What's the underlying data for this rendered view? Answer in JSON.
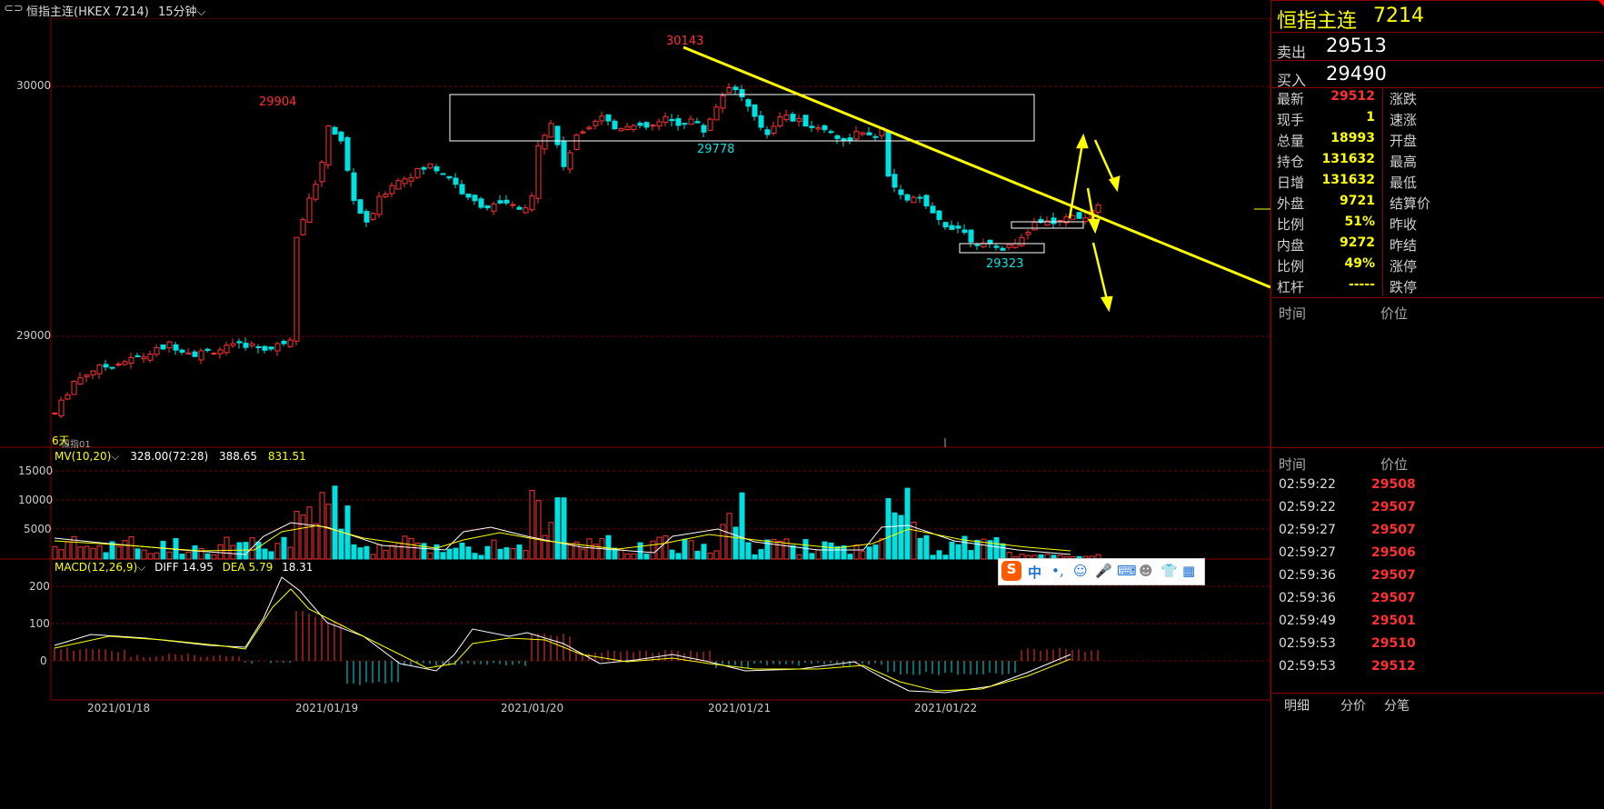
{
  "header": {
    "link_icon": "link-icon",
    "symbol": "恒指主连(HKEX 7214)",
    "period": "15分钟"
  },
  "chart_panel": {
    "price_labels": [
      "30000",
      "29000"
    ],
    "annotations": {
      "high_label": "30143",
      "peak_label": "29904",
      "box_low_label": "29778",
      "low_label": "29323"
    },
    "corner_label": "6天",
    "corner_sub": "恒指01",
    "mv_legend": {
      "name": "MV(10,20)",
      "v1": "328.00(72:28)",
      "v2": "388.65",
      "v3": "831.51"
    },
    "volume_ticks": [
      "15000",
      "10000",
      "5000"
    ],
    "macd_legend": {
      "name": "MACD(12,26,9)",
      "diff": "DIFF 14.95",
      "dea": "DEA 5.79",
      "macd": "18.31"
    },
    "macd_ticks": [
      "200",
      "100",
      "0"
    ],
    "dates": [
      "2021/01/18",
      "2021/01/19",
      "2021/01/20",
      "2021/01/21",
      "2021/01/22"
    ]
  },
  "sidebar": {
    "title": "恒指主连",
    "code": "7214",
    "sell_label": "卖出",
    "sell_value": "29513",
    "buy_label": "买入",
    "buy_value": "29490",
    "quote_rows": [
      {
        "label": "最新",
        "value": "29512",
        "right": "涨跌"
      },
      {
        "label": "现手",
        "value": "1",
        "right": "速涨"
      },
      {
        "label": "总量",
        "value": "18993",
        "right": "开盘"
      },
      {
        "label": "持仓",
        "value": "131632",
        "right": "最高"
      },
      {
        "label": "日增",
        "value": "131632",
        "right": "最低"
      },
      {
        "label": "外盘",
        "value": "9721",
        "right": "结算价"
      },
      {
        "label": "比例",
        "value": "51%",
        "right": "昨收"
      },
      {
        "label": "内盘",
        "value": "9272",
        "right": "昨结"
      },
      {
        "label": "比例",
        "value": "49%",
        "right": "涨停"
      },
      {
        "label": "杠杆",
        "value": "-----",
        "right": "跌停"
      }
    ],
    "tick_header": {
      "time": "时间",
      "price": "价位"
    },
    "ticks": [
      {
        "time": "02:59:22",
        "price": "29508"
      },
      {
        "time": "02:59:22",
        "price": "29507"
      },
      {
        "time": "02:59:27",
        "price": "29507"
      },
      {
        "time": "02:59:27",
        "price": "29506"
      },
      {
        "time": "02:59:36",
        "price": "29507"
      },
      {
        "time": "02:59:36",
        "price": "29507"
      },
      {
        "time": "02:59:49",
        "price": "29501"
      },
      {
        "time": "02:59:53",
        "price": "29510"
      },
      {
        "time": "02:59:53",
        "price": "29512"
      }
    ],
    "tabs": [
      "明细",
      "分价",
      "分笔"
    ]
  },
  "ime_toolbar": {
    "icons": [
      "sogou-logo-icon",
      "chinese-mode-icon",
      "punctuation-icon",
      "emoji-icon",
      "microphone-icon",
      "keyboard-icon",
      "user-icon",
      "skin-icon",
      "toolbox-icon"
    ],
    "mode": "中",
    "punct": "•,"
  },
  "chart_data": {
    "type": "candlestick",
    "title": "",
    "xlabel": "",
    "ylabel": "",
    "x_ticks": [
      "2021/01/18",
      "2021/01/19",
      "2021/01/20",
      "2021/01/21",
      "2021/01/22"
    ],
    "y_ticks": [
      30000,
      29000
    ],
    "ylim": [
      28560,
      30340
    ],
    "close_path": [
      [
        0,
        28620
      ],
      [
        3,
        28760
      ],
      [
        6,
        28810
      ],
      [
        10,
        28840
      ],
      [
        14,
        28870
      ],
      [
        18,
        28920
      ],
      [
        22,
        28880
      ],
      [
        26,
        28900
      ],
      [
        30,
        28920
      ],
      [
        34,
        28900
      ],
      [
        37,
        28950
      ],
      [
        38,
        29400
      ],
      [
        40,
        29550
      ],
      [
        42,
        29700
      ],
      [
        43,
        29880
      ],
      [
        45,
        29800
      ],
      [
        47,
        29550
      ],
      [
        49,
        29440
      ],
      [
        51,
        29550
      ],
      [
        53,
        29620
      ],
      [
        56,
        29660
      ],
      [
        59,
        29700
      ],
      [
        62,
        29650
      ],
      [
        65,
        29550
      ],
      [
        68,
        29520
      ],
      [
        71,
        29530
      ],
      [
        74,
        29500
      ],
      [
        75,
        29560
      ],
      [
        76,
        29800
      ],
      [
        78,
        29880
      ],
      [
        80,
        29700
      ],
      [
        82,
        29820
      ],
      [
        84,
        29880
      ],
      [
        86,
        29920
      ],
      [
        88,
        29860
      ],
      [
        90,
        29880
      ],
      [
        92,
        29860
      ],
      [
        94,
        29870
      ],
      [
        96,
        29900
      ],
      [
        98,
        29880
      ],
      [
        100,
        29900
      ],
      [
        102,
        29850
      ],
      [
        104,
        29960
      ],
      [
        106,
        30050
      ],
      [
        108,
        30000
      ],
      [
        110,
        29900
      ],
      [
        112,
        29840
      ],
      [
        114,
        29920
      ],
      [
        116,
        29900
      ],
      [
        118,
        29880
      ],
      [
        120,
        29860
      ],
      [
        122,
        29850
      ],
      [
        124,
        29800
      ],
      [
        126,
        29840
      ],
      [
        128,
        29820
      ],
      [
        130,
        29850
      ],
      [
        131,
        29650
      ],
      [
        133,
        29560
      ],
      [
        136,
        29550
      ],
      [
        138,
        29480
      ],
      [
        140,
        29440
      ],
      [
        142,
        29430
      ],
      [
        144,
        29380
      ],
      [
        146,
        29350
      ],
      [
        148,
        29340
      ],
      [
        150,
        29345
      ],
      [
        152,
        29400
      ],
      [
        154,
        29440
      ],
      [
        156,
        29450
      ],
      [
        158,
        29460
      ],
      [
        160,
        29470
      ],
      [
        162,
        29480
      ],
      [
        164,
        29512
      ]
    ],
    "mv_series": {
      "name": "MV(10,20)",
      "values": {
        "MV10": 388.65,
        "MV20": 831.51,
        "vol": 328.0
      }
    },
    "macd_series": {
      "name": "MACD(12,26,9)",
      "DIFF": 14.95,
      "DEA": 5.79,
      "MACD": 18.31
    },
    "annotations": [
      30143,
      29904,
      29778,
      29323
    ]
  }
}
